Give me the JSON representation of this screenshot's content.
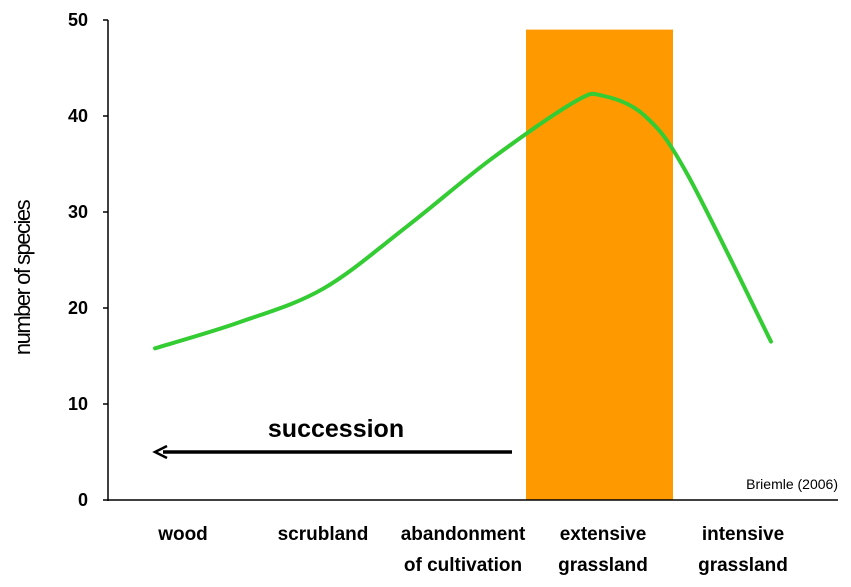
{
  "chart_data": {
    "type": "line",
    "ylabel": "number of species",
    "ylim": [
      0,
      50
    ],
    "yticks": [
      "0",
      "10",
      "20",
      "30",
      "40",
      "50"
    ],
    "categories": [
      [
        "wood"
      ],
      [
        "scrubland"
      ],
      [
        "abandonment",
        "of cultivation"
      ],
      [
        "extensive",
        "grassland"
      ],
      [
        "intensive",
        "grassland"
      ]
    ],
    "series": [
      {
        "color": "#33cc33",
        "x": [
          -0.2,
          0.4,
          1.0,
          1.6,
          2.2,
          2.8,
          3.0,
          3.3,
          3.6,
          4.2
        ],
        "values": [
          15.8,
          18.5,
          22.0,
          28.5,
          35.5,
          41.5,
          42.1,
          40.0,
          34.0,
          16.5
        ]
      }
    ],
    "highlight": {
      "category": "extensive grassland",
      "x_start": 2.45,
      "x_end": 3.5,
      "y_max": 49,
      "color": "#ff9900"
    },
    "annotations": {
      "arrow_label": "succession",
      "arrow_from_x": 2.35,
      "arrow_to_x": -0.2,
      "arrow_y": 5,
      "source": "Briemle (2006)"
    }
  }
}
